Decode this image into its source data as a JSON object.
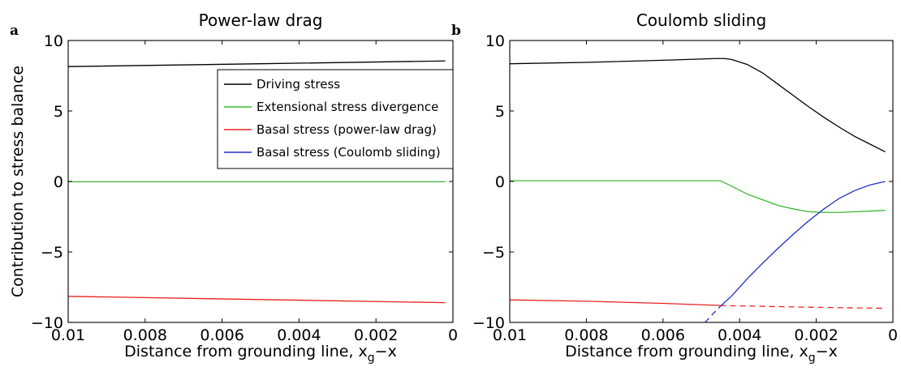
{
  "chart_data": [
    {
      "type": "line",
      "panel_letter": "a",
      "title": "Power-law drag",
      "xlabel": "Distance from grounding line, x",
      "xlabel_sub": "g",
      "xlabel_tail": "−x",
      "ylabel": "Contribution to stress balance",
      "xlim": [
        0.01,
        0
      ],
      "ylim": [
        -10,
        10
      ],
      "x_reversed": true,
      "xticks": [
        0.01,
        0.008,
        0.006,
        0.004,
        0.002,
        0
      ],
      "xtick_labels": [
        "0.01",
        "0.008",
        "0.006",
        "0.004",
        "0.002",
        "0"
      ],
      "yticks": [
        10,
        5,
        0,
        -5,
        -10
      ],
      "ytick_labels": [
        "10",
        "5",
        "0",
        "−5",
        "−10"
      ],
      "grid": false,
      "legend": {
        "placement": "upper-center",
        "entries": [
          {
            "label": "Driving stress",
            "color": "#000000"
          },
          {
            "label": "Extensional stress divergence",
            "color": "#3cb832"
          },
          {
            "label": "Basal stress (power-law drag)",
            "color": "#e8231e"
          },
          {
            "label": "Basal stress (Coulomb sliding)",
            "color": "#1f2fc4"
          }
        ]
      },
      "series": [
        {
          "name": "Driving stress",
          "color": "#000000",
          "style": "solid",
          "points": [
            [
              0.01,
              8.15
            ],
            [
              0.005,
              8.35
            ],
            [
              0.0002,
              8.55
            ]
          ]
        },
        {
          "name": "Extensional stress divergence",
          "color": "#3cb832",
          "style": "solid",
          "points": [
            [
              0.01,
              -0.02
            ],
            [
              0.005,
              -0.02
            ],
            [
              0.0002,
              -0.02
            ]
          ]
        },
        {
          "name": "Basal stress (power-law drag)",
          "color": "#e8231e",
          "style": "solid",
          "points": [
            [
              0.01,
              -8.15
            ],
            [
              0.005,
              -8.38
            ],
            [
              0.0002,
              -8.6
            ]
          ]
        }
      ]
    },
    {
      "type": "line",
      "panel_letter": "b",
      "title": "Coulomb sliding",
      "xlabel": "Distance from grounding line, x",
      "xlabel_sub": "g",
      "xlabel_tail": "−x",
      "xlim": [
        0.01,
        0
      ],
      "ylim": [
        -10,
        10
      ],
      "x_reversed": true,
      "xticks": [
        0.01,
        0.008,
        0.006,
        0.004,
        0.002,
        0
      ],
      "xtick_labels": [
        "0.01",
        "0.008",
        "0.006",
        "0.004",
        "0.002",
        "0"
      ],
      "yticks": [
        10,
        5,
        0,
        -5,
        -10
      ],
      "ytick_labels": [
        "10",
        "5",
        "0",
        "−5",
        "−10"
      ],
      "grid": false,
      "series": [
        {
          "name": "Driving stress",
          "color": "#000000",
          "style": "solid",
          "points": [
            [
              0.01,
              8.35
            ],
            [
              0.008,
              8.45
            ],
            [
              0.006,
              8.6
            ],
            [
              0.0046,
              8.72
            ],
            [
              0.0044,
              8.72
            ],
            [
              0.0042,
              8.65
            ],
            [
              0.0038,
              8.3
            ],
            [
              0.0034,
              7.7
            ],
            [
              0.003,
              6.9
            ],
            [
              0.0026,
              6.1
            ],
            [
              0.0022,
              5.3
            ],
            [
              0.0018,
              4.55
            ],
            [
              0.0014,
              3.85
            ],
            [
              0.001,
              3.2
            ],
            [
              0.0006,
              2.65
            ],
            [
              0.0002,
              2.1
            ]
          ]
        },
        {
          "name": "Extensional stress divergence",
          "color": "#3cb832",
          "style": "solid",
          "points": [
            [
              0.01,
              0.05
            ],
            [
              0.006,
              0.05
            ],
            [
              0.0045,
              0.05
            ],
            [
              0.0042,
              -0.35
            ],
            [
              0.0038,
              -0.9
            ],
            [
              0.0034,
              -1.3
            ],
            [
              0.003,
              -1.7
            ],
            [
              0.0026,
              -1.95
            ],
            [
              0.0022,
              -2.15
            ],
            [
              0.0018,
              -2.2
            ],
            [
              0.0014,
              -2.2
            ],
            [
              0.001,
              -2.15
            ],
            [
              0.0006,
              -2.1
            ],
            [
              0.0002,
              -2.05
            ]
          ]
        },
        {
          "name": "Basal stress (power-law drag)",
          "color": "#e8231e",
          "style": "solid",
          "points": [
            [
              0.01,
              -8.4
            ],
            [
              0.008,
              -8.5
            ],
            [
              0.006,
              -8.65
            ],
            [
              0.0045,
              -8.8
            ]
          ]
        },
        {
          "name": "Basal stress (power-law drag)",
          "color": "#e8231e",
          "style": "dashed",
          "points": [
            [
              0.0045,
              -8.8
            ],
            [
              0.003,
              -8.88
            ],
            [
              0.002,
              -8.93
            ],
            [
              0.001,
              -8.97
            ],
            [
              0.0002,
              -9.0
            ]
          ]
        },
        {
          "name": "Basal stress (Coulomb sliding)",
          "color": "#1f2fc4",
          "style": "dashed",
          "points": [
            [
              0.0049,
              -10.0
            ],
            [
              0.0047,
              -9.4
            ],
            [
              0.0045,
              -8.85
            ]
          ]
        },
        {
          "name": "Basal stress (Coulomb sliding)",
          "color": "#1f2fc4",
          "style": "solid",
          "points": [
            [
              0.0045,
              -8.85
            ],
            [
              0.0042,
              -8.1
            ],
            [
              0.0038,
              -6.9
            ],
            [
              0.0034,
              -5.8
            ],
            [
              0.003,
              -4.75
            ],
            [
              0.0026,
              -3.75
            ],
            [
              0.0022,
              -2.8
            ],
            [
              0.0018,
              -1.95
            ],
            [
              0.0014,
              -1.2
            ],
            [
              0.001,
              -0.65
            ],
            [
              0.0006,
              -0.25
            ],
            [
              0.0002,
              0.0
            ]
          ]
        }
      ]
    }
  ]
}
